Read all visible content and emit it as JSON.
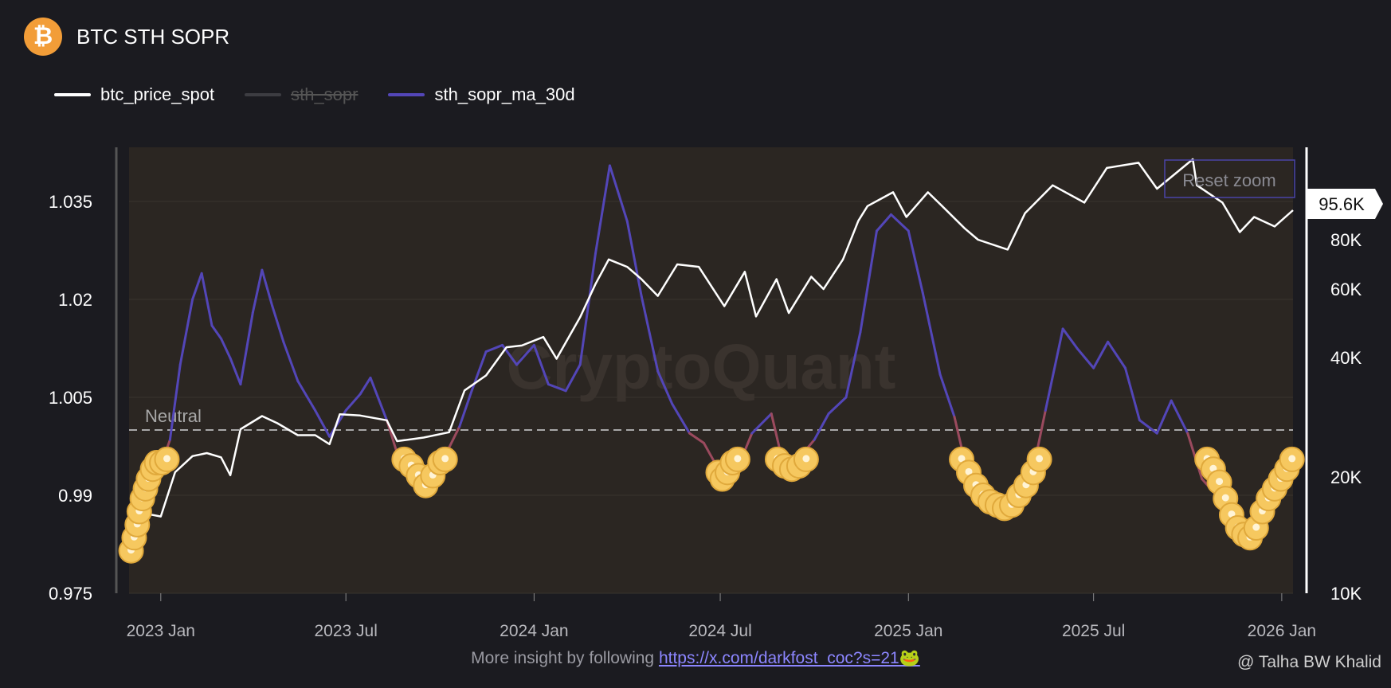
{
  "header": {
    "title": "BTC STH SOPR",
    "logo_glyph": "₿"
  },
  "legend": [
    {
      "label": "btc_price_spot",
      "color": "#ffffff",
      "hidden": false
    },
    {
      "label": "sth_sopr",
      "color": "#3d3d42",
      "hidden": true
    },
    {
      "label": "sth_sopr_ma_30d",
      "color": "#5346b8",
      "hidden": false
    }
  ],
  "reset_zoom_label": "Reset zoom",
  "watermark_text": "CryptoQuant",
  "neutral_label": "Neutral",
  "current_price_label": "95.6K",
  "footer": {
    "text": "More insight by following",
    "link": "https://x.com/darkfost_coc?s=21🐸"
  },
  "attribution": "@ Talha BW Khalid",
  "chart_data": {
    "type": "line",
    "title": "BTC STH SOPR",
    "x_ticks": [
      "2023 Jan",
      "2023 Jul",
      "2024 Jan",
      "2024 Jul",
      "2025 Jan",
      "2025 Jul",
      "2026 Jan"
    ],
    "x_range": [
      "2022-12-01",
      "2026-01-12"
    ],
    "y_left": {
      "ticks": [
        "1.035",
        "1.02",
        "1.005",
        "0.99",
        "0.975"
      ],
      "range": [
        0.975,
        1.0433
      ],
      "neutral": 1.0
    },
    "y_right": {
      "ticks": [
        "95.6K",
        "80K",
        "60K",
        "40K",
        "20K",
        "10K"
      ],
      "range": [
        10000,
        125000
      ],
      "scale": "custom"
    },
    "colors": {
      "ma_above": "#5346b8",
      "ma_below": "#9b4a5e",
      "price": "#ffffff",
      "marker": "#f6c85f",
      "plot_bg": "#2b2622"
    },
    "series": [
      {
        "name": "sth_sopr_ma_30d",
        "axis": "left",
        "points": [
          [
            "2022-12-01",
            0.9815
          ],
          [
            "2022-12-15",
            0.9885
          ],
          [
            "2023-01-01",
            0.9945
          ],
          [
            "2023-01-10",
            0.9985
          ],
          [
            "2023-01-20",
            1.01
          ],
          [
            "2023-02-01",
            1.02
          ],
          [
            "2023-02-10",
            1.024
          ],
          [
            "2023-02-20",
            1.016
          ],
          [
            "2023-03-01",
            1.014
          ],
          [
            "2023-03-10",
            1.011
          ],
          [
            "2023-03-20",
            1.007
          ],
          [
            "2023-04-01",
            1.018
          ],
          [
            "2023-04-10",
            1.0245
          ],
          [
            "2023-04-20",
            1.019
          ],
          [
            "2023-05-01",
            1.0135
          ],
          [
            "2023-05-15",
            1.0075
          ],
          [
            "2023-06-01",
            1.003
          ],
          [
            "2023-06-15",
            0.999
          ],
          [
            "2023-07-01",
            1.003
          ],
          [
            "2023-07-15",
            1.0055
          ],
          [
            "2023-07-25",
            1.008
          ],
          [
            "2023-08-10",
            1.0015
          ],
          [
            "2023-08-20",
            0.9965
          ],
          [
            "2023-09-01",
            0.9935
          ],
          [
            "2023-09-15",
            0.9915
          ],
          [
            "2023-10-01",
            0.9945
          ],
          [
            "2023-10-20",
            1.0005
          ],
          [
            "2023-11-01",
            1.006
          ],
          [
            "2023-11-15",
            1.012
          ],
          [
            "2023-12-01",
            1.013
          ],
          [
            "2023-12-15",
            1.01
          ],
          [
            "2024-01-01",
            1.013
          ],
          [
            "2024-01-15",
            1.007
          ],
          [
            "2024-02-01",
            1.006
          ],
          [
            "2024-02-15",
            1.01
          ],
          [
            "2024-03-01",
            1.027
          ],
          [
            "2024-03-15",
            1.0405
          ],
          [
            "2024-04-01",
            1.032
          ],
          [
            "2024-04-15",
            1.0205
          ],
          [
            "2024-05-01",
            1.009
          ],
          [
            "2024-05-15",
            1.004
          ],
          [
            "2024-06-01",
            0.9995
          ],
          [
            "2024-06-15",
            0.998
          ],
          [
            "2024-07-01",
            0.9935
          ],
          [
            "2024-07-15",
            0.993
          ],
          [
            "2024-08-01",
            0.9995
          ],
          [
            "2024-08-20",
            1.0025
          ],
          [
            "2024-09-01",
            0.9945
          ],
          [
            "2024-09-15",
            0.9955
          ],
          [
            "2024-10-01",
            0.9985
          ],
          [
            "2024-10-15",
            1.0025
          ],
          [
            "2024-11-01",
            1.005
          ],
          [
            "2024-11-15",
            1.015
          ],
          [
            "2024-12-01",
            1.0305
          ],
          [
            "2024-12-15",
            1.033
          ],
          [
            "2025-01-01",
            1.0305
          ],
          [
            "2025-01-15",
            1.021
          ],
          [
            "2025-02-01",
            1.0085
          ],
          [
            "2025-02-15",
            1.002
          ],
          [
            "2025-03-01",
            0.9925
          ],
          [
            "2025-03-15",
            0.9895
          ],
          [
            "2025-04-01",
            0.9865
          ],
          [
            "2025-04-15",
            0.9885
          ],
          [
            "2025-05-01",
            0.9925
          ],
          [
            "2025-05-15",
            1.003
          ],
          [
            "2025-06-01",
            1.0155
          ],
          [
            "2025-06-15",
            1.0125
          ],
          [
            "2025-07-01",
            1.0095
          ],
          [
            "2025-07-15",
            1.0135
          ],
          [
            "2025-08-01",
            1.0095
          ],
          [
            "2025-08-15",
            1.0015
          ],
          [
            "2025-09-01",
            0.9995
          ],
          [
            "2025-09-15",
            1.0045
          ],
          [
            "2025-10-01",
            0.9995
          ],
          [
            "2025-10-15",
            0.9925
          ],
          [
            "2025-11-01",
            0.9895
          ],
          [
            "2025-11-15",
            0.9855
          ],
          [
            "2025-12-01",
            0.9835
          ],
          [
            "2025-12-15",
            0.9875
          ],
          [
            "2026-01-01",
            0.9905
          ],
          [
            "2026-01-12",
            0.9945
          ]
        ]
      },
      {
        "name": "btc_price_spot",
        "axis": "right",
        "points": [
          [
            "2022-12-01",
            17000
          ],
          [
            "2022-12-20",
            16800
          ],
          [
            "2023-01-01",
            16600
          ],
          [
            "2023-01-15",
            20800
          ],
          [
            "2023-02-01",
            23500
          ],
          [
            "2023-02-15",
            24000
          ],
          [
            "2023-03-01",
            23300
          ],
          [
            "2023-03-10",
            20300
          ],
          [
            "2023-03-20",
            28000
          ],
          [
            "2023-04-10",
            30200
          ],
          [
            "2023-04-25",
            29000
          ],
          [
            "2023-05-15",
            27000
          ],
          [
            "2023-06-01",
            27000
          ],
          [
            "2023-06-15",
            25500
          ],
          [
            "2023-06-25",
            30500
          ],
          [
            "2023-07-15",
            30300
          ],
          [
            "2023-08-10",
            29500
          ],
          [
            "2023-08-20",
            26000
          ],
          [
            "2023-09-15",
            26600
          ],
          [
            "2023-10-10",
            27500
          ],
          [
            "2023-10-25",
            34500
          ],
          [
            "2023-11-15",
            37000
          ],
          [
            "2023-12-05",
            43000
          ],
          [
            "2023-12-20",
            43500
          ],
          [
            "2024-01-10",
            46000
          ],
          [
            "2024-01-23",
            39800
          ],
          [
            "2024-02-15",
            51800
          ],
          [
            "2024-03-01",
            62000
          ],
          [
            "2024-03-14",
            72000
          ],
          [
            "2024-04-01",
            69000
          ],
          [
            "2024-04-15",
            64000
          ],
          [
            "2024-05-01",
            58000
          ],
          [
            "2024-05-20",
            70000
          ],
          [
            "2024-06-10",
            69000
          ],
          [
            "2024-07-05",
            55000
          ],
          [
            "2024-07-25",
            67000
          ],
          [
            "2024-08-05",
            52000
          ],
          [
            "2024-08-25",
            64000
          ],
          [
            "2024-09-06",
            53000
          ],
          [
            "2024-09-28",
            65000
          ],
          [
            "2024-10-10",
            60000
          ],
          [
            "2024-10-29",
            72000
          ],
          [
            "2024-11-13",
            90000
          ],
          [
            "2024-11-22",
            98000
          ],
          [
            "2024-12-17",
            106000
          ],
          [
            "2024-12-30",
            92000
          ],
          [
            "2025-01-20",
            106000
          ],
          [
            "2025-02-03",
            98000
          ],
          [
            "2025-02-25",
            86000
          ],
          [
            "2025-03-10",
            80000
          ],
          [
            "2025-04-08",
            76000
          ],
          [
            "2025-04-25",
            94000
          ],
          [
            "2025-05-22",
            110000
          ],
          [
            "2025-06-22",
            100000
          ],
          [
            "2025-07-14",
            120000
          ],
          [
            "2025-08-14",
            123000
          ],
          [
            "2025-09-01",
            108000
          ],
          [
            "2025-10-06",
            125000
          ],
          [
            "2025-10-10",
            110000
          ],
          [
            "2025-11-04",
            100000
          ],
          [
            "2025-11-21",
            84000
          ],
          [
            "2025-12-05",
            92000
          ],
          [
            "2025-12-25",
            87000
          ],
          [
            "2026-01-12",
            95600
          ]
        ]
      }
    ],
    "markers": [
      {
        "x": "2022-12-03",
        "y": 0.9815
      },
      {
        "x": "2022-12-06",
        "y": 0.9835
      },
      {
        "x": "2022-12-09",
        "y": 0.9855
      },
      {
        "x": "2022-12-11",
        "y": 0.9875
      },
      {
        "x": "2022-12-14",
        "y": 0.9895
      },
      {
        "x": "2022-12-17",
        "y": 0.991
      },
      {
        "x": "2022-12-20",
        "y": 0.9925
      },
      {
        "x": "2022-12-24",
        "y": 0.994
      },
      {
        "x": "2022-12-28",
        "y": 0.995
      },
      {
        "x": "2023-01-02",
        "y": 0.995
      },
      {
        "x": "2023-01-07",
        "y": 0.9955
      },
      {
        "x": "2023-08-27",
        "y": 0.9955
      },
      {
        "x": "2023-09-03",
        "y": 0.9945
      },
      {
        "x": "2023-09-10",
        "y": 0.993
      },
      {
        "x": "2023-09-17",
        "y": 0.9915
      },
      {
        "x": "2023-09-24",
        "y": 0.993
      },
      {
        "x": "2023-10-01",
        "y": 0.995
      },
      {
        "x": "2023-10-06",
        "y": 0.9955
      },
      {
        "x": "2024-06-29",
        "y": 0.9935
      },
      {
        "x": "2024-07-03",
        "y": 0.9925
      },
      {
        "x": "2024-07-08",
        "y": 0.9935
      },
      {
        "x": "2024-07-13",
        "y": 0.995
      },
      {
        "x": "2024-07-18",
        "y": 0.9955
      },
      {
        "x": "2024-08-26",
        "y": 0.9955
      },
      {
        "x": "2024-09-02",
        "y": 0.9945
      },
      {
        "x": "2024-09-09",
        "y": 0.994
      },
      {
        "x": "2024-09-16",
        "y": 0.9945
      },
      {
        "x": "2024-09-23",
        "y": 0.9955
      },
      {
        "x": "2025-02-22",
        "y": 0.9955
      },
      {
        "x": "2025-03-01",
        "y": 0.9935
      },
      {
        "x": "2025-03-08",
        "y": 0.9915
      },
      {
        "x": "2025-03-15",
        "y": 0.99
      },
      {
        "x": "2025-03-22",
        "y": 0.989
      },
      {
        "x": "2025-03-29",
        "y": 0.9885
      },
      {
        "x": "2025-04-05",
        "y": 0.988
      },
      {
        "x": "2025-04-12",
        "y": 0.9885
      },
      {
        "x": "2025-04-19",
        "y": 0.99
      },
      {
        "x": "2025-04-26",
        "y": 0.9915
      },
      {
        "x": "2025-05-03",
        "y": 0.9935
      },
      {
        "x": "2025-05-09",
        "y": 0.9955
      },
      {
        "x": "2025-10-20",
        "y": 0.9955
      },
      {
        "x": "2025-10-26",
        "y": 0.994
      },
      {
        "x": "2025-11-01",
        "y": 0.992
      },
      {
        "x": "2025-11-07",
        "y": 0.9895
      },
      {
        "x": "2025-11-13",
        "y": 0.987
      },
      {
        "x": "2025-11-19",
        "y": 0.985
      },
      {
        "x": "2025-11-25",
        "y": 0.984
      },
      {
        "x": "2025-12-01",
        "y": 0.9835
      },
      {
        "x": "2025-12-07",
        "y": 0.985
      },
      {
        "x": "2025-12-13",
        "y": 0.9875
      },
      {
        "x": "2025-12-19",
        "y": 0.9895
      },
      {
        "x": "2025-12-25",
        "y": 0.991
      },
      {
        "x": "2025-12-31",
        "y": 0.9925
      },
      {
        "x": "2026-01-06",
        "y": 0.994
      },
      {
        "x": "2026-01-11",
        "y": 0.9955
      }
    ]
  }
}
